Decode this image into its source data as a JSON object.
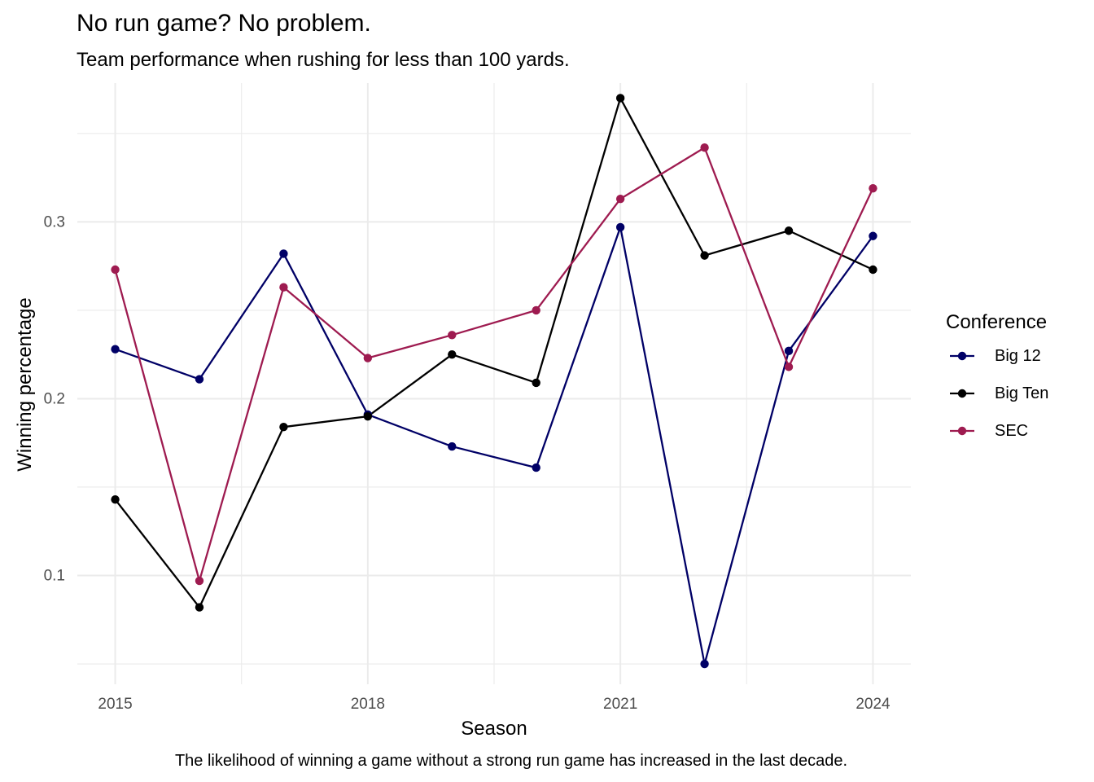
{
  "chart_data": {
    "type": "line",
    "title": "No run game? No problem.",
    "subtitle": "Team performance when rushing for less than 100 yards.",
    "caption": "The likelihood of winning a game without a strong run game has increased in the last decade.",
    "xlabel": "Season",
    "ylabel": "Winning percentage",
    "x": [
      2015,
      2016,
      2017,
      2018,
      2019,
      2020,
      2021,
      2022,
      2023,
      2024
    ],
    "xlim": [
      2014.55,
      2024.45
    ],
    "ylim": [
      0.0385,
      0.3785
    ],
    "x_ticks": [
      2015,
      2018,
      2021,
      2024
    ],
    "x_tick_labels": [
      "2015",
      "2018",
      "2021",
      "2024"
    ],
    "y_ticks": [
      0.1,
      0.2,
      0.3
    ],
    "y_tick_labels": [
      "0.1",
      "0.2",
      "0.3"
    ],
    "grid": true,
    "legend_title": "Conference",
    "legend_position": "right",
    "series": [
      {
        "name": "Big 12",
        "color": "#000066",
        "values": [
          0.228,
          0.211,
          0.282,
          0.191,
          0.173,
          0.161,
          0.297,
          0.05,
          0.227,
          0.292
        ]
      },
      {
        "name": "Big Ten",
        "color": "#000000",
        "values": [
          0.143,
          0.082,
          0.184,
          0.19,
          0.225,
          0.209,
          0.37,
          0.281,
          0.295,
          0.273
        ]
      },
      {
        "name": "SEC",
        "color": "#9E1B50",
        "values": [
          0.273,
          0.097,
          0.263,
          0.223,
          0.236,
          0.25,
          0.313,
          0.342,
          0.218,
          0.319
        ]
      }
    ]
  }
}
